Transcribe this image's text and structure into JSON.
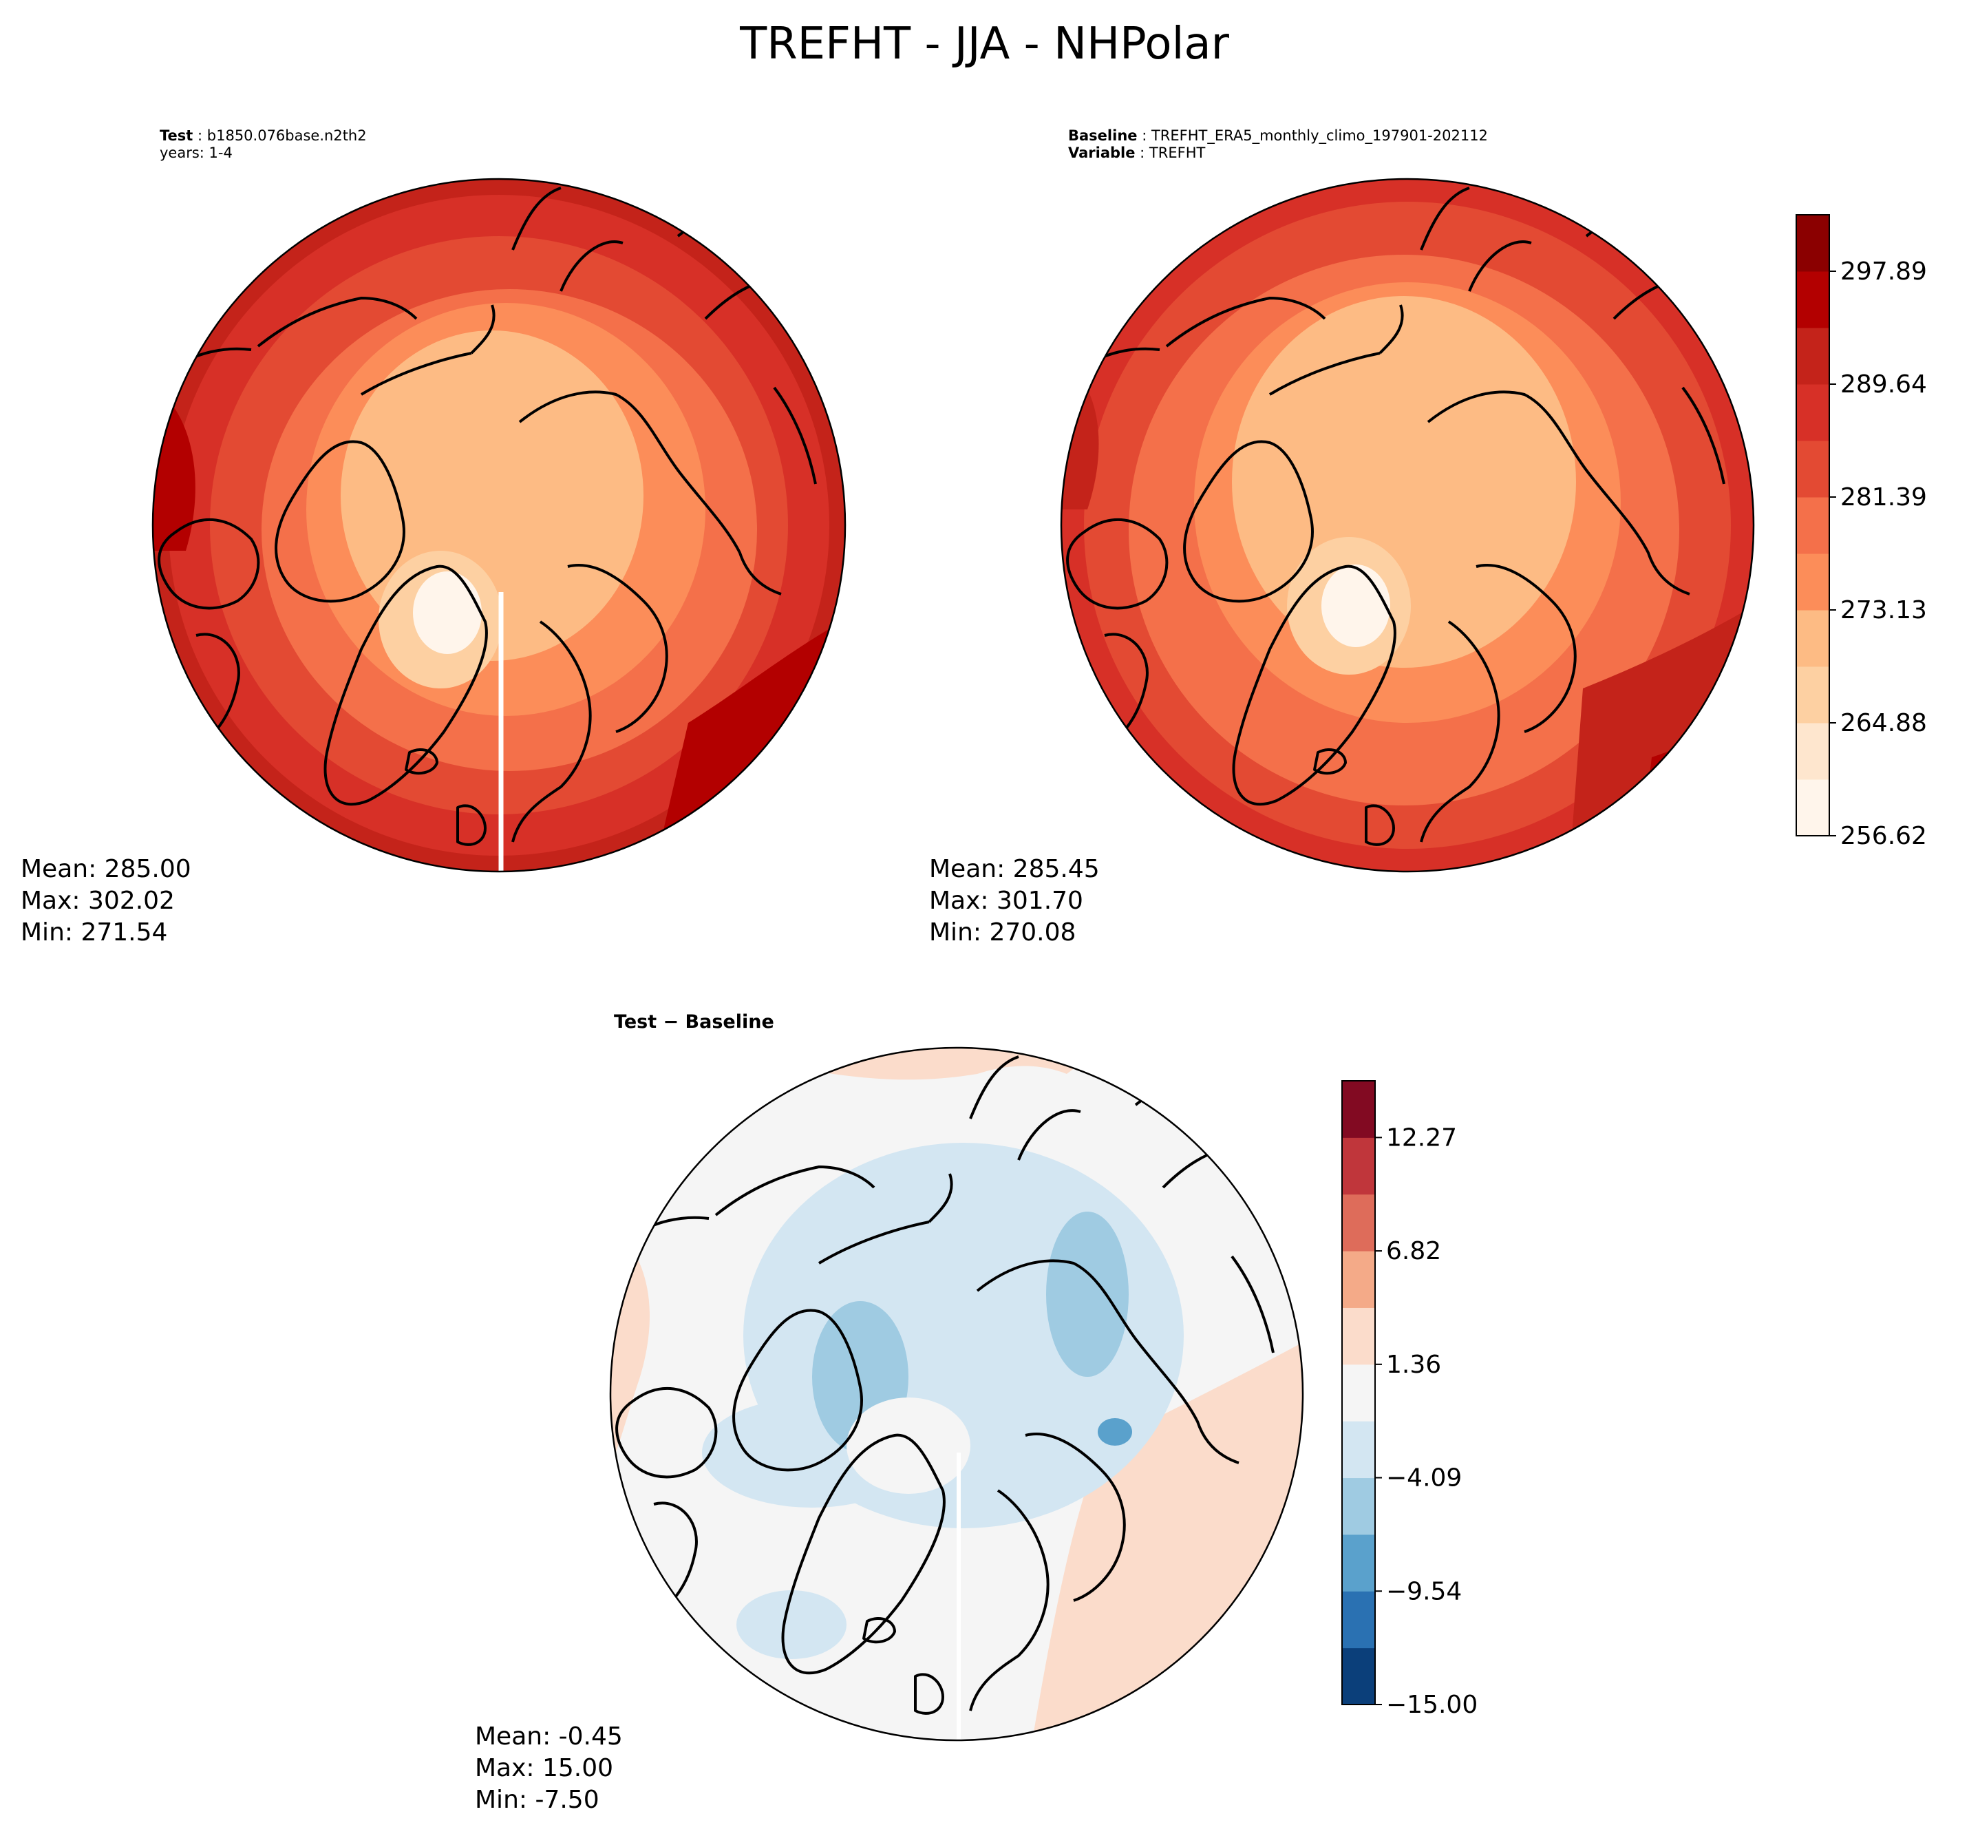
{
  "title": "TREFHT - JJA - NHPolar",
  "panels": {
    "test": {
      "label_key": "Test",
      "label_value": "b1850.076base.n2th2",
      "line2": "years: 1-4",
      "mean": "Mean: 285.00",
      "max": "Max: 302.02",
      "min": "Min: 271.54"
    },
    "baseline": {
      "label_key": "Baseline",
      "label_value": "TREFHT_ERA5_monthly_climo_197901-202112",
      "line2_key": "Variable",
      "line2_value": "TREFHT",
      "mean": "Mean: 285.45",
      "max": "Max: 301.70",
      "min": "Min: 270.08"
    },
    "diff": {
      "label": "Test − Baseline",
      "mean": "Mean: -0.45",
      "max": "Max: 15.00",
      "min": "Min: -7.50"
    }
  },
  "chart_data": [
    {
      "type": "heatmap",
      "name": "Test",
      "projection": "north-polar-stereographic",
      "colormap": "Reds",
      "levels": [
        256.62,
        260.75,
        264.88,
        269.0,
        273.13,
        277.26,
        281.39,
        285.51,
        289.64,
        293.77,
        297.89,
        302.02
      ],
      "stats": {
        "mean": 285.0,
        "max": 302.02,
        "min": 271.54
      }
    },
    {
      "type": "heatmap",
      "name": "Baseline",
      "projection": "north-polar-stereographic",
      "colormap": "Reds",
      "levels": [
        256.62,
        260.75,
        264.88,
        269.0,
        273.13,
        277.26,
        281.39,
        285.51,
        289.64,
        293.77,
        297.89,
        302.02
      ],
      "stats": {
        "mean": 285.45,
        "max": 301.7,
        "min": 270.08
      },
      "colorbar": {
        "ticks": [
          "297.89",
          "289.64",
          "281.39",
          "273.13",
          "264.88",
          "256.62"
        ],
        "colors": [
          "#fff5eb",
          "#fee6ce",
          "#fdd0a2",
          "#fdbb84",
          "#fc8d59",
          "#f4704a",
          "#e34a33",
          "#d73027",
          "#c4231a",
          "#b30000",
          "#8b0000"
        ]
      }
    },
    {
      "type": "heatmap",
      "name": "Test − Baseline",
      "projection": "north-polar-stereographic",
      "colormap": "RdBu_r",
      "levels": [
        -15.0,
        -12.27,
        -9.54,
        -6.82,
        -4.09,
        -1.36,
        1.36,
        4.09,
        6.82,
        9.54,
        12.27,
        15.0
      ],
      "stats": {
        "mean": -0.45,
        "max": 15.0,
        "min": -7.5
      },
      "colorbar": {
        "ticks": [
          "12.27",
          "6.82",
          "1.36",
          "−4.09",
          "−9.54",
          "−15.00"
        ],
        "colors": [
          "#0b3f7a",
          "#2a71b2",
          "#5aa1cc",
          "#9fcbe2",
          "#d3e6f2",
          "#f5f5f5",
          "#fbdccb",
          "#f4aa88",
          "#de6c5a",
          "#c0363b",
          "#820a22"
        ]
      }
    }
  ]
}
